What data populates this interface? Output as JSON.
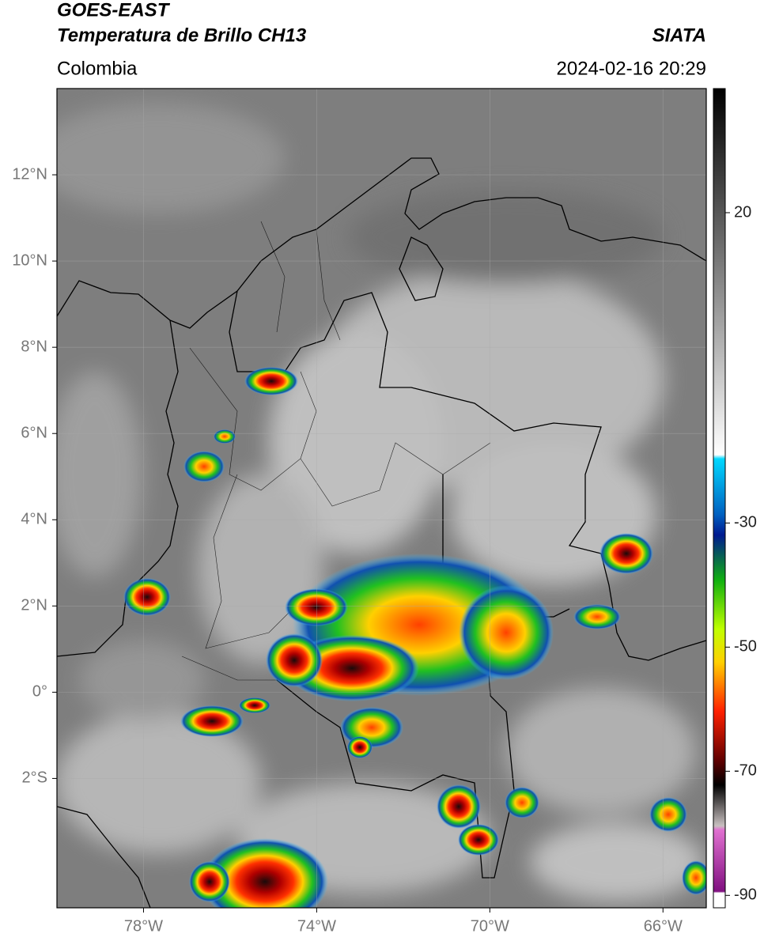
{
  "header": {
    "title": "GOES-EAST",
    "subtitle": "Temperatura de Brillo CH13",
    "source": "SIATA",
    "region": "Colombia",
    "datetime": "2024-02-16 20:29"
  },
  "map": {
    "xlim": [
      -80,
      -65
    ],
    "ylim": [
      -5,
      14
    ],
    "xticks": [
      {
        "value": -78,
        "label": "78°W"
      },
      {
        "value": -74,
        "label": "74°W"
      },
      {
        "value": -70,
        "label": "70°W"
      },
      {
        "value": -66,
        "label": "66°W"
      }
    ],
    "yticks": [
      {
        "value": 12,
        "label": "12°N"
      },
      {
        "value": 10,
        "label": "10°N"
      },
      {
        "value": 8,
        "label": "8°N"
      },
      {
        "value": 6,
        "label": "6°N"
      },
      {
        "value": 4,
        "label": "4°N"
      },
      {
        "value": 2,
        "label": "2°N"
      },
      {
        "value": 0,
        "label": "0°"
      },
      {
        "value": -2,
        "label": "2°S"
      }
    ]
  },
  "colorbar": {
    "lim": [
      -92,
      40
    ],
    "ticks": [
      20,
      -30,
      -50,
      -70,
      -90
    ]
  }
}
